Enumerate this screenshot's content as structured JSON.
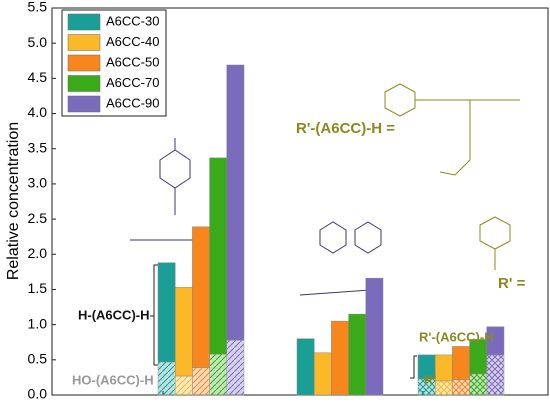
{
  "chart_data": {
    "type": "bar",
    "y_label": "Relative concentration",
    "categories": [
      null,
      null,
      null
    ],
    "ylim": [
      0,
      5.5
    ],
    "yticks": [
      {
        "value": 0,
        "label": "0.0"
      },
      0.5,
      {
        "value": 1,
        "label": "1.0"
      },
      1.5,
      {
        "value": 2,
        "label": "2.0"
      },
      2.5,
      {
        "value": 3,
        "label": "3.0"
      },
      3.5,
      {
        "value": 4,
        "label": "4.0"
      },
      4.5,
      {
        "value": 5,
        "label": "5.0"
      },
      5.5
    ],
    "hatch_patterns": [
      "diagonal",
      null,
      "cross"
    ],
    "legend": "upper left",
    "series": [
      {
        "name": "A6CC-30",
        "color": "#1a9e96",
        "hatched": [
          0.47,
          null,
          0.23
        ],
        "values": [
          1.41,
          0.8,
          0.34
        ]
      },
      {
        "name": "A6CC-40",
        "color": "#fbb829",
        "hatched": [
          0.27,
          null,
          0.2
        ],
        "values": [
          1.26,
          0.6,
          0.37
        ]
      },
      {
        "name": "A6CC-50",
        "color": "#f7861d",
        "hatched": [
          0.39,
          null,
          0.22
        ],
        "values": [
          2.0,
          1.05,
          0.47
        ]
      },
      {
        "name": "A6CC-70",
        "color": "#3aaa1b",
        "hatched": [
          0.58,
          null,
          0.3
        ],
        "values": [
          2.79,
          1.15,
          0.49
        ]
      },
      {
        "name": "A6CC-90",
        "color": "#7b6bbd",
        "hatched": [
          0.78,
          null,
          0.57
        ],
        "values": [
          3.91,
          1.66,
          0.4
        ]
      }
    ],
    "annotations": [
      "H-(A6CC)-H",
      "HO-(A6CC)-H",
      "R'-(A6CC)-H",
      "R'",
      "R'-(A6CC)-H =",
      "R' ="
    ]
  }
}
